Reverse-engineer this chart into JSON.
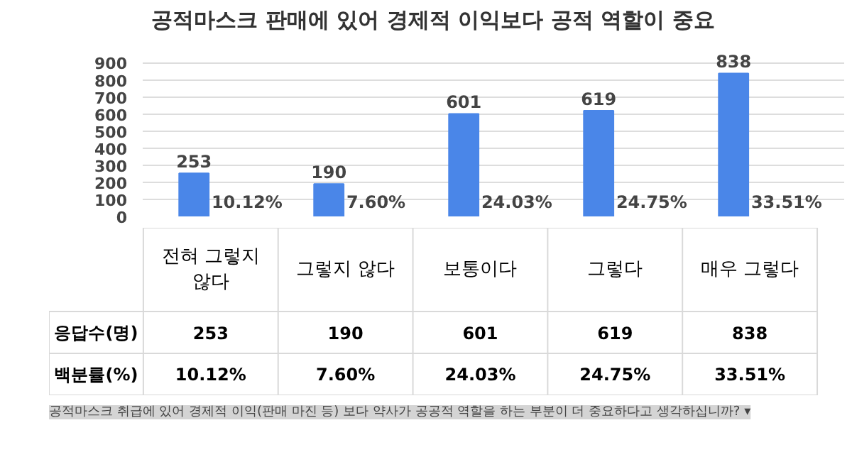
{
  "chart_data": {
    "type": "bar",
    "title": "공적마스크 판매에 있어 경제적 이익보다 공적 역할이 중요",
    "categories": [
      "전혀 그렇지 않다",
      "그렇지 않다",
      "보통이다",
      "그렇다",
      "매우 그렇다"
    ],
    "values": [
      253,
      190,
      601,
      619,
      838
    ],
    "value_labels": [
      "253",
      "190",
      "601",
      "619",
      "838"
    ],
    "color": "#4a86e8",
    "ylim": [
      0,
      900
    ],
    "yticks": [
      0,
      100,
      200,
      300,
      400,
      500,
      600,
      700,
      800,
      900
    ],
    "grid": "y",
    "annotations": [
      "10.12%",
      "7.60%",
      "24.03%",
      "24.75%",
      "33.51%",
      "응답수(명)",
      "백분률(%)",
      "공적마스크 취급에 있어 경제적 이익(판매 마진 등) 보다 약사가 공공적 역할을 하는 부분이 더 중요하다고 생각하십니까? ▾"
    ]
  }
}
